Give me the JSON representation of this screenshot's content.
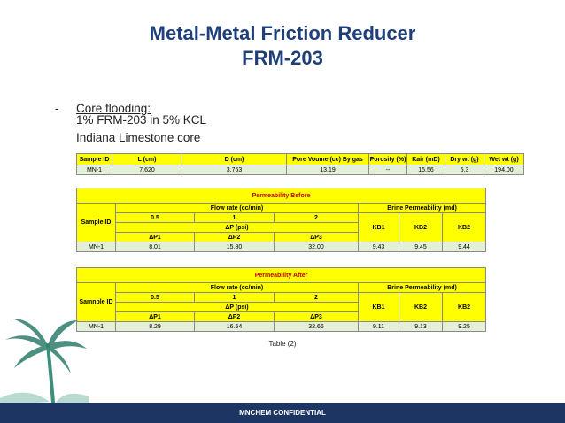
{
  "title_line1": "Metal-Metal Friction Reducer",
  "title_line2": "FRM-203",
  "bullet": {
    "dash": "-",
    "text": "Core flooding:"
  },
  "lines": [
    "1% FRM-203 in 5% KCL",
    "Indiana Limestone core"
  ],
  "table1": {
    "headers": [
      "Sample ID",
      "L  (cm)",
      "D (cm)",
      "Pore Voume (cc)  By gas",
      "Porosity (%)",
      "Kair (mD)",
      "Dry wt (g)",
      "Wet wt (g)"
    ],
    "row": [
      "MN-1",
      "7.620",
      "3.763",
      "13.19",
      "--",
      "15.56",
      "5.3",
      "194.00"
    ]
  },
  "table2": {
    "heading": "Permeability Before",
    "sample_label": "Sample ID",
    "flow_rate_label": "Flow rate (cc/min)",
    "brine_label": "Brine Permeability (md)",
    "rates": [
      "0.5",
      "1",
      "2"
    ],
    "dp_label": "ΔP (psi)",
    "kb": [
      "KB1",
      "KB2",
      "KB2"
    ],
    "dp": [
      "ΔP1",
      "ΔP2",
      "ΔP3"
    ],
    "row": [
      "MN-1",
      "8.01",
      "15.80",
      "32.00",
      "9.43",
      "9.45",
      "9.44"
    ]
  },
  "table3": {
    "heading": "Permeability After",
    "sample_label": "Samnple ID",
    "flow_rate_label": "Flow rate (cc/min)",
    "brine_label": "Brine Permeability (md)",
    "rates": [
      "0.5",
      "1",
      "2"
    ],
    "dp_label": "ΔP (psi)",
    "kb": [
      "KB1",
      "KB2",
      "KB2"
    ],
    "dp": [
      "ΔP1",
      "ΔP2",
      "ΔP3"
    ],
    "row": [
      "MN-1",
      "8.29",
      "16.54",
      "32.66",
      "9.11",
      "9.13",
      "9.25"
    ]
  },
  "caption": "Table (2)",
  "footer": "MNCHEM CONFIDENTIAL",
  "colors": {
    "title": "#1f3f7a",
    "highlight": "#ffff00",
    "row_fill": "#e4efd8",
    "footer": "#1d3562",
    "heading_text": "#c00000"
  },
  "icons": {
    "decoration": "palm-tree-icon"
  }
}
